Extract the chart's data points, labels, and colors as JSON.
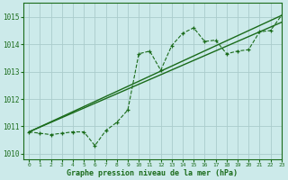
{
  "title": "Graphe pression niveau de la mer (hPa)",
  "background_color": "#cceaea",
  "grid_color": "#aacccc",
  "line_color": "#1a6b1a",
  "xlim": [
    -0.5,
    23
  ],
  "ylim": [
    1009.8,
    1015.5
  ],
  "yticks": [
    1010,
    1011,
    1012,
    1013,
    1014,
    1015
  ],
  "xticks": [
    0,
    1,
    2,
    3,
    4,
    5,
    6,
    7,
    8,
    9,
    10,
    11,
    12,
    13,
    14,
    15,
    16,
    17,
    18,
    19,
    20,
    21,
    22,
    23
  ],
  "series1_x": [
    0,
    1,
    2,
    3,
    4,
    5,
    6,
    7,
    8,
    9,
    10,
    11,
    12,
    13,
    14,
    15,
    16,
    17,
    18,
    19,
    20,
    21,
    22,
    23
  ],
  "series1_y": [
    1010.8,
    1010.75,
    1010.7,
    1010.75,
    1010.8,
    1010.8,
    1010.3,
    1010.85,
    1011.15,
    1011.6,
    1013.65,
    1013.75,
    1013.05,
    1013.95,
    1014.4,
    1014.6,
    1014.1,
    1014.15,
    1013.65,
    1013.75,
    1013.8,
    1014.45,
    1014.5,
    1015.05
  ],
  "series2_x": [
    0,
    23
  ],
  "series2_y": [
    1010.8,
    1015.05
  ],
  "series3_x": [
    0,
    23
  ],
  "series3_y": [
    1010.8,
    1014.8
  ]
}
